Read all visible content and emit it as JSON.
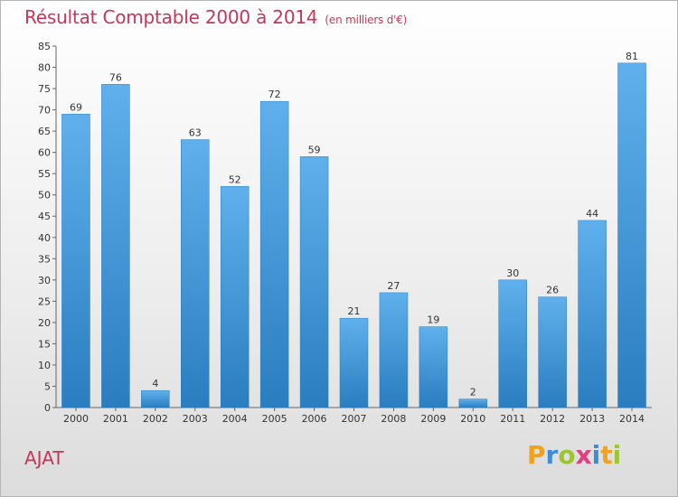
{
  "chart_data": {
    "type": "bar",
    "title": "Résultat Comptable 2000 à 2014",
    "subtitle": "(en milliers d'€)",
    "categories": [
      "2000",
      "2001",
      "2002",
      "2003",
      "2004",
      "2005",
      "2006",
      "2007",
      "2008",
      "2009",
      "2010",
      "2011",
      "2012",
      "2013",
      "2014"
    ],
    "values": [
      69,
      76,
      4,
      63,
      52,
      72,
      59,
      21,
      27,
      19,
      2,
      30,
      26,
      44,
      81
    ],
    "ylim": [
      0,
      85
    ],
    "yticks": [
      0,
      5,
      10,
      15,
      20,
      25,
      30,
      35,
      40,
      45,
      50,
      55,
      60,
      65,
      70,
      75,
      80,
      85
    ],
    "xlabel": "",
    "ylabel": "",
    "grid": false,
    "bar_color": "#3a93d6"
  },
  "commune": "AJAT",
  "brand": {
    "letters": [
      "P",
      "r",
      "o",
      "x",
      "i",
      "t",
      "i"
    ],
    "colors": [
      "#f0a21c",
      "#3a8fd6",
      "#9cc531",
      "#e04080",
      "#3a8fd6",
      "#f0a21c",
      "#9cc531"
    ]
  }
}
